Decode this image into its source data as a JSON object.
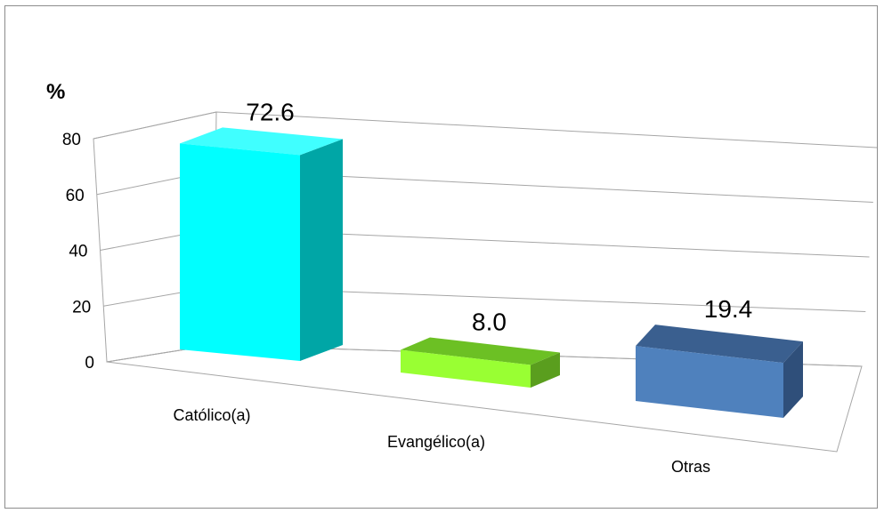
{
  "chart_data": {
    "type": "bar",
    "ylabel": "%",
    "ylim": [
      0,
      80
    ],
    "yticks": [
      "0",
      "20",
      "40",
      "60",
      "80"
    ],
    "categories": [
      "Católico(a)",
      "Evangélico(a)",
      "Otras"
    ],
    "values": [
      72.6,
      8.0,
      19.4
    ],
    "data_labels": [
      "72.6",
      "8.0",
      "19.4"
    ],
    "colors": {
      "front": [
        "#00ffff",
        "#99ff33",
        "#4f81bd"
      ],
      "top": [
        "#40ffff",
        "#6cc024",
        "#3a5f8f"
      ],
      "side": [
        "#00a6a6",
        "#5a9e1e",
        "#2f4f7a"
      ]
    },
    "grid": true,
    "legend": "none"
  }
}
